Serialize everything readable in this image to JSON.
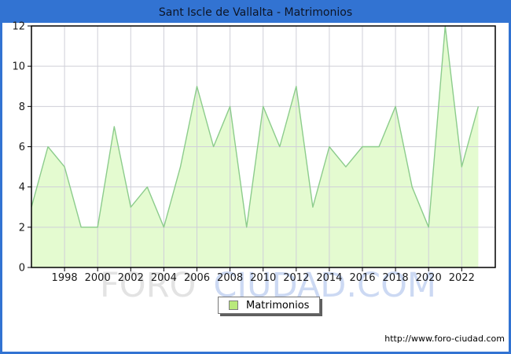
{
  "window": {
    "title": "Sant Iscle de Vallalta - Matrimonios"
  },
  "colors": {
    "frame_border": "#3273d2",
    "titlebar_bg": "#3273d2",
    "title_text": "#0d1526",
    "area_fill": "#e4fbd0",
    "area_stroke": "#8ccc8c",
    "grid": "#cfcfd8",
    "plot_border": "#000000",
    "axis_text": "#1a1a1a",
    "legend_swatch": "#b9e97b",
    "watermark_gray": "#e3e3e3",
    "watermark_blue": "#ccd9f3"
  },
  "watermark": {
    "part1": "FORO",
    "part2": "CIUDAD.COM"
  },
  "legend": {
    "label": "Matrimonios"
  },
  "footer": {
    "url": "http://www.foro-ciudad.com"
  },
  "chart_data": {
    "type": "area",
    "title": "Sant Iscle de Vallalta - Matrimonios",
    "series_name": "Matrimonios",
    "x": [
      1996,
      1997,
      1998,
      1999,
      2000,
      2001,
      2002,
      2003,
      2004,
      2005,
      2006,
      2007,
      2008,
      2009,
      2010,
      2011,
      2012,
      2013,
      2014,
      2015,
      2016,
      2017,
      2018,
      2019,
      2020,
      2021,
      2022,
      2023
    ],
    "values": [
      3,
      6,
      5,
      2,
      2,
      7,
      3,
      4,
      2,
      5,
      9,
      6,
      8,
      2,
      8,
      6,
      9,
      3,
      6,
      5,
      6,
      6,
      8,
      4,
      2,
      12,
      5,
      8
    ],
    "xlabel": "",
    "ylabel": "",
    "ylim": [
      0,
      12
    ],
    "y_ticks": [
      0,
      2,
      4,
      6,
      8,
      10,
      12
    ],
    "x_tick_labels": [
      "1998",
      "2000",
      "2002",
      "2004",
      "2006",
      "2008",
      "2010",
      "2012",
      "2014",
      "2016",
      "2018",
      "2020",
      "2022"
    ],
    "grid": true,
    "legend_position": "bottom-center"
  }
}
